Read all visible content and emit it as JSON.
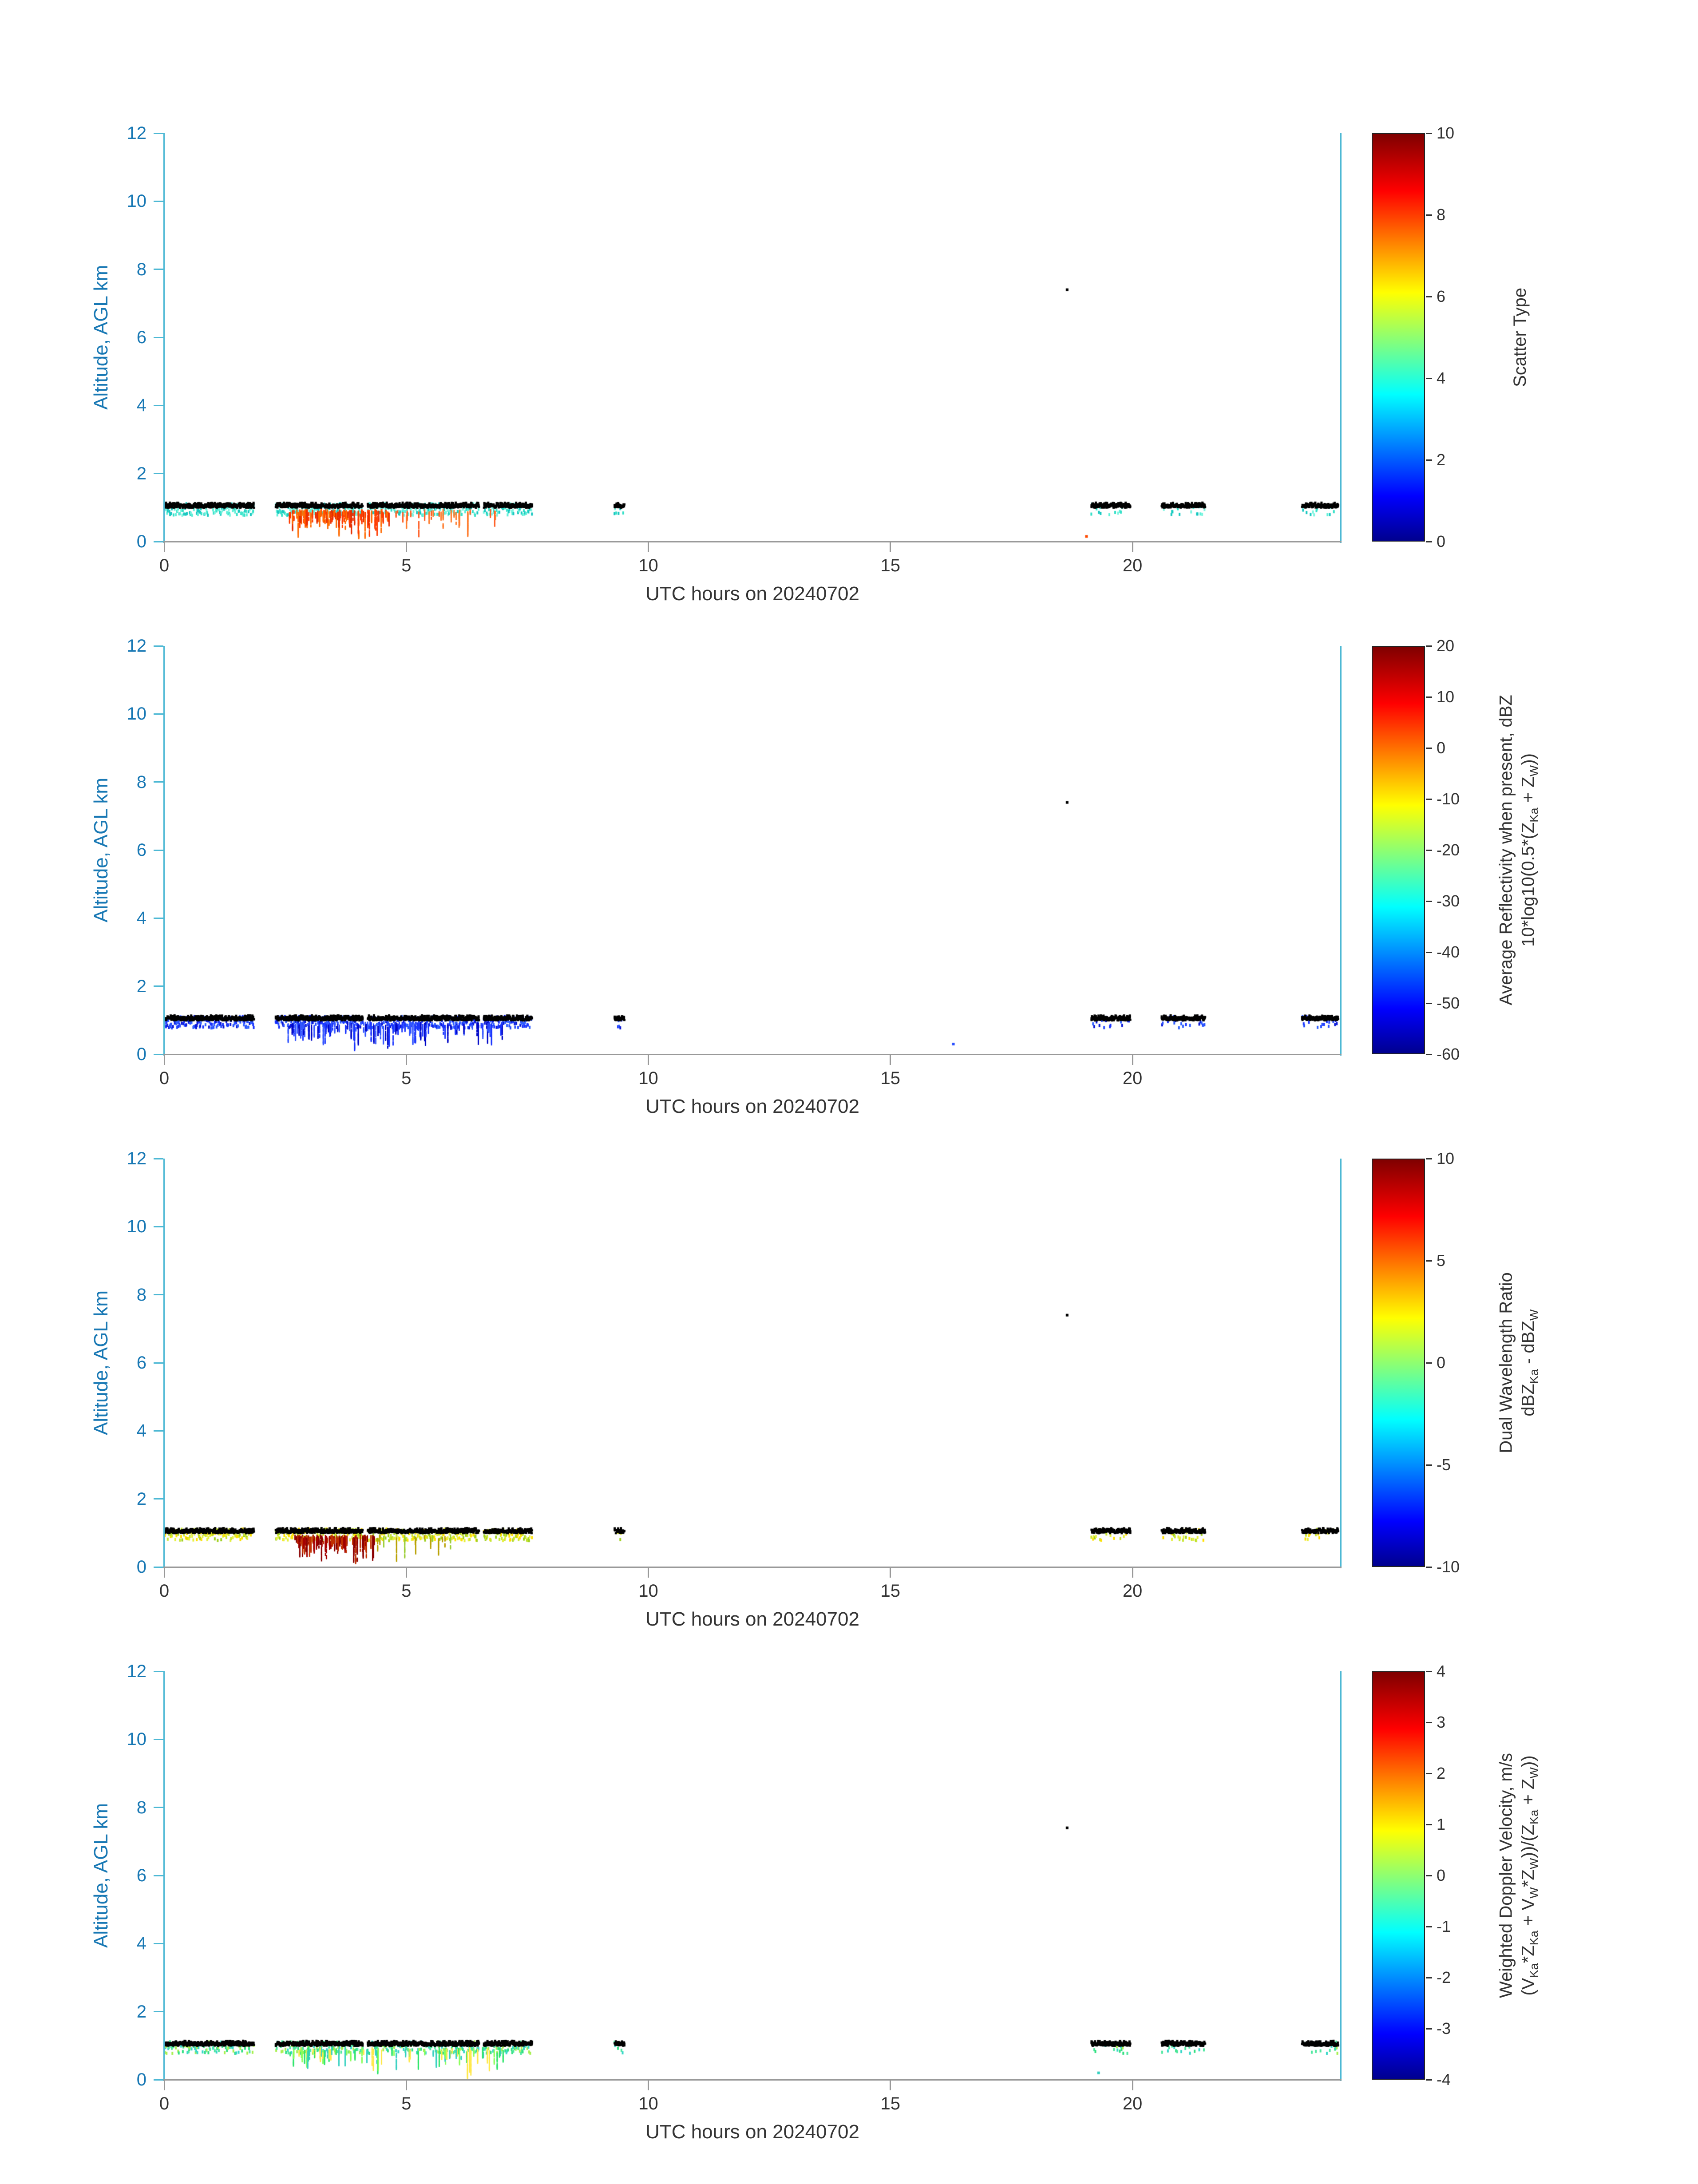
{
  "figure": {
    "background": "#ffffff",
    "axis_text_color": "#1878b4",
    "axis_spine_color": "#4db8d4",
    "x_spine_color": "#999999",
    "x_text_color": "#333333",
    "jet_stops": [
      [
        "#00008f",
        0
      ],
      [
        "#0000ff",
        11
      ],
      [
        "#00ffff",
        36
      ],
      [
        "#ffff00",
        61
      ],
      [
        "#ff0000",
        86
      ],
      [
        "#7f0000",
        100
      ]
    ]
  },
  "chart_data": [
    {
      "type": "scatter",
      "xlabel": "UTC hours on 20240702",
      "ylabel": "Altitude, AGL km",
      "xlim": [
        0,
        24.3
      ],
      "ylim": [
        0,
        12
      ],
      "xticks": [
        0,
        5,
        10,
        15,
        20
      ],
      "yticks": [
        0,
        2,
        4,
        6,
        8,
        10,
        12
      ],
      "colorbar": {
        "range": [
          0,
          10
        ],
        "ticks": [
          0,
          2,
          4,
          6,
          8,
          10
        ],
        "colormap": "jet",
        "label_lines": [
          [
            {
              "t": "Scatter Type"
            }
          ]
        ]
      },
      "seed": 11,
      "band": {
        "altitude_km": 1.05,
        "segments": [
          [
            0,
            1.85
          ],
          [
            2.3,
            4.1
          ],
          [
            4.2,
            6.5
          ],
          [
            6.6,
            7.6
          ],
          [
            9.3,
            9.5
          ],
          [
            19.15,
            19.95
          ],
          [
            20.6,
            21.5
          ],
          [
            23.5,
            24.25
          ]
        ],
        "top_color": "#000000",
        "fuzz_colors": [
          "#35e0c8",
          "#5ff0d8",
          "#18c8c0",
          "#7df5e0"
        ],
        "fuzz_density": 0.8
      },
      "streak_clusters": [
        {
          "x0": 2.55,
          "x1": 4.65,
          "count": 120,
          "colors": [
            "#ff3c00",
            "#ff6a00",
            "#e62e00"
          ]
        },
        {
          "x0": 4.7,
          "x1": 6.9,
          "count": 25,
          "colors": [
            "#ff5a1e",
            "#ff7a2a"
          ]
        }
      ],
      "isolated_points": [
        [
          18.65,
          7.4,
          "#000000"
        ],
        [
          19.05,
          0.15,
          "#ff4a00"
        ]
      ]
    },
    {
      "type": "scatter",
      "xlabel": "UTC hours on 20240702",
      "ylabel": "Altitude, AGL km",
      "xlim": [
        0,
        24.3
      ],
      "ylim": [
        0,
        12
      ],
      "xticks": [
        0,
        5,
        10,
        15,
        20
      ],
      "yticks": [
        0,
        2,
        4,
        6,
        8,
        10,
        12
      ],
      "colorbar": {
        "range": [
          -60,
          20
        ],
        "ticks": [
          -60,
          -50,
          -40,
          -30,
          -20,
          -10,
          0,
          10,
          20
        ],
        "colormap": "jet",
        "label_lines": [
          [
            {
              "t": "Average Reflectivity when present, dBZ"
            }
          ],
          [
            {
              "t": "10*log10(0.5*(Z"
            },
            {
              "s": "Ka"
            },
            {
              "t": " + Z"
            },
            {
              "s": "W"
            },
            {
              "t": "))"
            }
          ]
        ]
      },
      "seed": 22,
      "band": {
        "altitude_km": 1.05,
        "segments": [
          [
            0,
            1.85
          ],
          [
            2.3,
            4.1
          ],
          [
            4.2,
            6.5
          ],
          [
            6.6,
            7.6
          ],
          [
            9.3,
            9.5
          ],
          [
            19.15,
            19.95
          ],
          [
            20.6,
            21.5
          ],
          [
            23.5,
            24.25
          ]
        ],
        "top_color": "#000000",
        "fuzz_colors": [
          "#1a35ff",
          "#2a50ff",
          "#0a18d8",
          "#3060ff"
        ],
        "fuzz_density": 0.9
      },
      "streak_clusters": [
        {
          "x0": 2.55,
          "x1": 7.0,
          "count": 130,
          "colors": [
            "#1a35ff",
            "#0008c8",
            "#3355ff"
          ]
        }
      ],
      "isolated_points": [
        [
          18.65,
          7.4,
          "#000000"
        ],
        [
          16.3,
          0.3,
          "#2a50ff"
        ]
      ]
    },
    {
      "type": "scatter",
      "xlabel": "UTC hours on 20240702",
      "ylabel": "Altitude, AGL km",
      "xlim": [
        0,
        24.3
      ],
      "ylim": [
        0,
        12
      ],
      "xticks": [
        0,
        5,
        10,
        15,
        20
      ],
      "yticks": [
        0,
        2,
        4,
        6,
        8,
        10,
        12
      ],
      "colorbar": {
        "range": [
          -10,
          10
        ],
        "ticks": [
          -10,
          -5,
          0,
          5,
          10
        ],
        "colormap": "jet",
        "label_lines": [
          [
            {
              "t": "Dual Wavelength Ratio"
            }
          ],
          [
            {
              "t": "dBZ"
            },
            {
              "s": "Ka"
            },
            {
              "t": " - dBZ"
            },
            {
              "s": "W"
            }
          ]
        ]
      },
      "seed": 33,
      "band": {
        "altitude_km": 1.05,
        "segments": [
          [
            0,
            1.85
          ],
          [
            2.3,
            4.1
          ],
          [
            4.2,
            6.5
          ],
          [
            6.6,
            7.6
          ],
          [
            9.3,
            9.5
          ],
          [
            19.15,
            19.95
          ],
          [
            20.6,
            21.5
          ],
          [
            23.5,
            24.25
          ]
        ],
        "top_color": "#000000",
        "fuzz_colors": [
          "#c8e632",
          "#e6f040",
          "#a0d020",
          "#ffe000"
        ],
        "fuzz_density": 0.85
      },
      "streak_clusters": [
        {
          "x0": 2.7,
          "x1": 4.35,
          "count": 110,
          "colors": [
            "#8b0000",
            "#a40000",
            "#c03000"
          ]
        },
        {
          "x0": 4.4,
          "x1": 6.2,
          "count": 15,
          "colors": [
            "#9acd32",
            "#b8a000"
          ]
        }
      ],
      "isolated_points": [
        [
          18.65,
          7.4,
          "#000000"
        ]
      ]
    },
    {
      "type": "scatter",
      "xlabel": "UTC hours on 20240702",
      "ylabel": "Altitude, AGL km",
      "xlim": [
        0,
        24.3
      ],
      "ylim": [
        0,
        12
      ],
      "xticks": [
        0,
        5,
        10,
        15,
        20
      ],
      "yticks": [
        0,
        2,
        4,
        6,
        8,
        10,
        12
      ],
      "colorbar": {
        "range": [
          -4,
          4
        ],
        "ticks": [
          -4,
          -3,
          -2,
          -1,
          0,
          1,
          2,
          3,
          4
        ],
        "colormap": "jet",
        "label_lines": [
          [
            {
              "t": "Weighted Doppler Velocity, m/s"
            }
          ],
          [
            {
              "t": "(V"
            },
            {
              "s": "Ka"
            },
            {
              "t": "*Z"
            },
            {
              "s": "Ka"
            },
            {
              "t": " + V"
            },
            {
              "s": "W"
            },
            {
              "t": "*Z"
            },
            {
              "s": "W"
            },
            {
              "t": "))/(Z"
            },
            {
              "s": "Ka"
            },
            {
              "t": " + Z"
            },
            {
              "s": "W"
            },
            {
              "t": "))"
            }
          ]
        ]
      },
      "seed": 44,
      "band": {
        "altitude_km": 1.05,
        "segments": [
          [
            0,
            1.85
          ],
          [
            2.3,
            4.1
          ],
          [
            4.2,
            6.5
          ],
          [
            6.6,
            7.6
          ],
          [
            9.3,
            9.5
          ],
          [
            19.15,
            19.95
          ],
          [
            20.6,
            21.5
          ],
          [
            23.5,
            24.25
          ]
        ],
        "top_color": "#000000",
        "fuzz_colors": [
          "#30e080",
          "#50e8a0",
          "#38d8c8",
          "#a8f050"
        ],
        "fuzz_density": 0.7
      },
      "streak_clusters": [
        {
          "x0": 2.6,
          "x1": 7.0,
          "count": 90,
          "colors": [
            "#2ee56a",
            "#8aff5a",
            "#ffe84a",
            "#35d0c0"
          ]
        }
      ],
      "isolated_points": [
        [
          18.65,
          7.4,
          "#000000"
        ],
        [
          19.3,
          0.2,
          "#35d0c0"
        ]
      ]
    }
  ]
}
